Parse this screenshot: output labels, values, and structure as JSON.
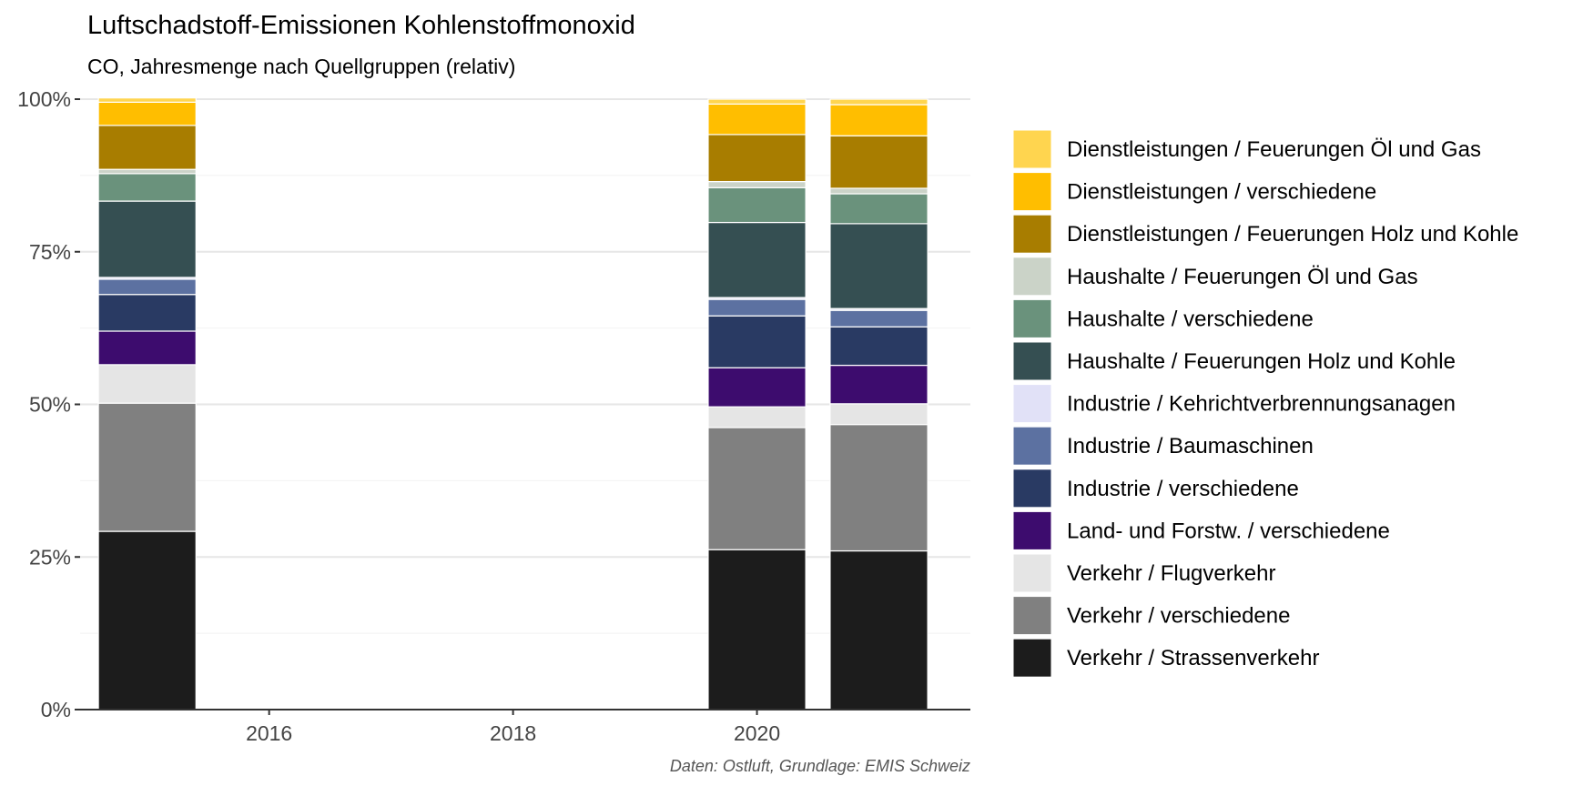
{
  "title": "Luftschadstoff-Emissionen Kohlenstoffmonoxid",
  "subtitle": "CO, Jahresmenge nach Quellgruppen (relativ)",
  "caption": "Daten: Ostluft, Grundlage: EMIS Schweiz",
  "chart_data": {
    "type": "bar",
    "stacked": true,
    "normalized": true,
    "x": [
      2015,
      2020,
      2021
    ],
    "xticks": [
      "2016",
      "2018",
      "2020"
    ],
    "xlim": [
      2014.45,
      2021.75
    ],
    "ylim": [
      0,
      1
    ],
    "yticks": [
      "0%",
      "25%",
      "50%",
      "75%",
      "100%"
    ],
    "grid": true,
    "legend_position": "right",
    "series": [
      {
        "name": "Verkehr / Strassenverkehr",
        "color": "#1c1c1c",
        "values": [
          0.292,
          0.262,
          0.26
        ]
      },
      {
        "name": "Verkehr / verschiedene",
        "color": "#808080",
        "values": [
          0.21,
          0.2,
          0.207
        ]
      },
      {
        "name": "Verkehr / Flugverkehr",
        "color": "#e5e5e5",
        "values": [
          0.063,
          0.034,
          0.034
        ]
      },
      {
        "name": "Land- und Forstw. / verschiedene",
        "color": "#3d0c6e",
        "values": [
          0.055,
          0.064,
          0.063
        ]
      },
      {
        "name": "Industrie / verschiedene",
        "color": "#293a63",
        "values": [
          0.06,
          0.085,
          0.063
        ]
      },
      {
        "name": "Industrie / Baumaschinen",
        "color": "#5c71a1",
        "values": [
          0.025,
          0.027,
          0.027
        ]
      },
      {
        "name": "Industrie / Kehrichtverbrennungsanagen",
        "color": "#e1e1f7",
        "values": [
          0.003,
          0.003,
          0.003
        ]
      },
      {
        "name": "Haushalte / Feuerungen Holz und Kohle",
        "color": "#354f52",
        "values": [
          0.125,
          0.123,
          0.139
        ]
      },
      {
        "name": "Haushalte / verschiedene",
        "color": "#6a927c",
        "values": [
          0.045,
          0.057,
          0.049
        ]
      },
      {
        "name": "Haushalte / Feuerungen Öl und Gas",
        "color": "#cbd3c8",
        "values": [
          0.007,
          0.01,
          0.009
        ]
      },
      {
        "name": "Dienstleistungen / Feuerungen Holz und Kohle",
        "color": "#a87d00",
        "values": [
          0.072,
          0.077,
          0.086
        ]
      },
      {
        "name": "Dienstleistungen / verschiedene",
        "color": "#ffbe00",
        "values": [
          0.038,
          0.05,
          0.051
        ]
      },
      {
        "name": "Dienstleistungen / Feuerungen Öl und Gas",
        "color": "#ffd54f",
        "values": [
          0.007,
          0.008,
          0.009
        ]
      }
    ]
  }
}
